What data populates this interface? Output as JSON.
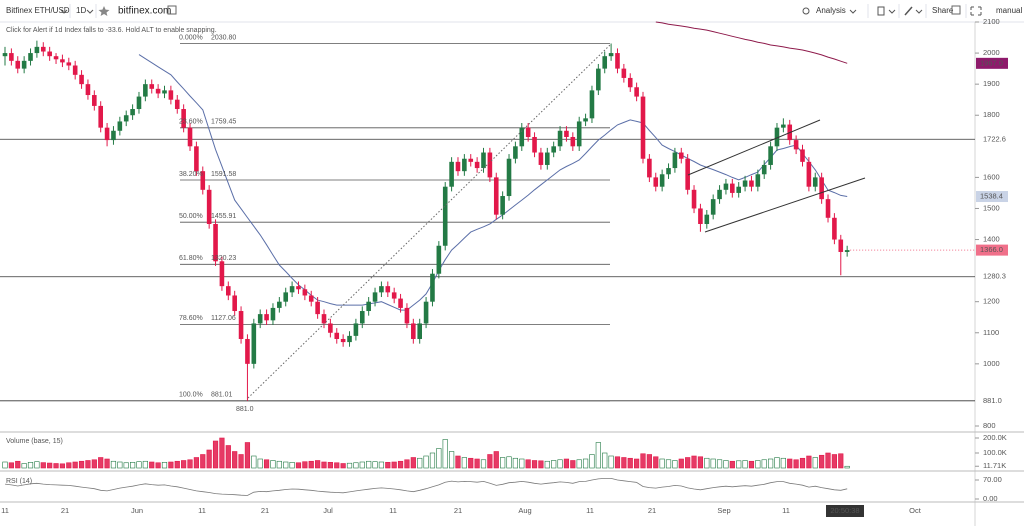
{
  "chart_data": {
    "type": "candlestick",
    "toolbar": {
      "symbol": "Bitfinex ETH/USD",
      "interval": "1D",
      "site": "bitfinex.com",
      "analysis": "Analysis",
      "share": "Share",
      "mode": "manual"
    },
    "hint": "Click for Alert if 1d Index falls to -33.6. Hold ALT to enable snapping.",
    "ylim": [
      800,
      2100
    ],
    "yticks": [
      2100,
      2000,
      1900,
      1800,
      1600,
      1500,
      1400,
      1200,
      1100,
      1000,
      800
    ],
    "hlines": [
      1722.6,
      1280.3,
      {
        "value": 881,
        "label": "881.0"
      }
    ],
    "markers": [
      {
        "value": 1967,
        "label": "1967.0",
        "color": "#8e1a6b"
      },
      {
        "value": 1538.4,
        "label": "1538.4",
        "color": "#c9d3e6"
      },
      {
        "value": 1366,
        "label": "1366.0",
        "color": "#f0708a"
      }
    ],
    "fib": [
      {
        "ratio": "0.000%",
        "value": 2030.8,
        "label": "2030.80"
      },
      {
        "ratio": "23.60%",
        "value": 1759.45,
        "label": "1759.45"
      },
      {
        "ratio": "38.20%",
        "value": 1591.58,
        "label": "1591.58"
      },
      {
        "ratio": "50.00%",
        "value": 1455.91,
        "label": "1455.91"
      },
      {
        "ratio": "61.80%",
        "value": 1320.23,
        "label": "1320.23"
      },
      {
        "ratio": "78.60%",
        "value": 1127.06,
        "label": "1127.06"
      },
      {
        "ratio": "100.0%",
        "value": 881.01,
        "label": "881.01"
      }
    ],
    "low_label": "881.0",
    "up_color": "#237a45",
    "down_color": "#e2184a",
    "candles": [
      [
        1990,
        2020,
        1960,
        2000
      ],
      [
        2000,
        2015,
        1960,
        1975
      ],
      [
        1975,
        1990,
        1935,
        1950
      ],
      [
        1950,
        1990,
        1935,
        1975
      ],
      [
        1975,
        2015,
        1960,
        2000
      ],
      [
        2000,
        2040,
        1985,
        2020
      ],
      [
        2020,
        2035,
        1990,
        2005
      ],
      [
        2005,
        2020,
        1975,
        1990
      ],
      [
        1990,
        2000,
        1965,
        1980
      ],
      [
        1980,
        1995,
        1955,
        1970
      ],
      [
        1970,
        1985,
        1945,
        1960
      ],
      [
        1960,
        1975,
        1915,
        1930
      ],
      [
        1930,
        1945,
        1885,
        1900
      ],
      [
        1900,
        1915,
        1850,
        1865
      ],
      [
        1865,
        1880,
        1815,
        1830
      ],
      [
        1830,
        1845,
        1745,
        1760
      ],
      [
        1760,
        1775,
        1700,
        1720
      ],
      [
        1720,
        1765,
        1705,
        1750
      ],
      [
        1750,
        1795,
        1735,
        1780
      ],
      [
        1780,
        1815,
        1765,
        1800
      ],
      [
        1800,
        1835,
        1785,
        1820
      ],
      [
        1820,
        1875,
        1805,
        1860
      ],
      [
        1860,
        1915,
        1845,
        1900
      ],
      [
        1900,
        1915,
        1870,
        1885
      ],
      [
        1885,
        1900,
        1855,
        1870
      ],
      [
        1870,
        1895,
        1855,
        1880
      ],
      [
        1880,
        1895,
        1835,
        1850
      ],
      [
        1850,
        1865,
        1805,
        1820
      ],
      [
        1820,
        1835,
        1745,
        1760
      ],
      [
        1760,
        1775,
        1685,
        1700
      ],
      [
        1700,
        1715,
        1605,
        1620
      ],
      [
        1620,
        1635,
        1545,
        1560
      ],
      [
        1560,
        1575,
        1435,
        1450
      ],
      [
        1450,
        1465,
        1315,
        1330
      ],
      [
        1330,
        1345,
        1235,
        1250
      ],
      [
        1250,
        1265,
        1205,
        1220
      ],
      [
        1220,
        1235,
        1155,
        1170
      ],
      [
        1170,
        1185,
        1065,
        1080
      ],
      [
        1080,
        1095,
        881.01,
        1000
      ],
      [
        1000,
        1145,
        985,
        1130
      ],
      [
        1130,
        1175,
        1115,
        1160
      ],
      [
        1160,
        1175,
        1125,
        1140
      ],
      [
        1140,
        1195,
        1125,
        1180
      ],
      [
        1180,
        1215,
        1165,
        1200
      ],
      [
        1200,
        1245,
        1185,
        1230
      ],
      [
        1230,
        1265,
        1215,
        1250
      ],
      [
        1250,
        1265,
        1225,
        1240
      ],
      [
        1240,
        1255,
        1205,
        1220
      ],
      [
        1220,
        1235,
        1185,
        1200
      ],
      [
        1200,
        1215,
        1145,
        1160
      ],
      [
        1160,
        1175,
        1115,
        1130
      ],
      [
        1130,
        1145,
        1085,
        1100
      ],
      [
        1100,
        1115,
        1065,
        1080
      ],
      [
        1080,
        1095,
        1055,
        1070
      ],
      [
        1070,
        1105,
        1055,
        1090
      ],
      [
        1090,
        1145,
        1075,
        1130
      ],
      [
        1130,
        1185,
        1115,
        1170
      ],
      [
        1170,
        1215,
        1155,
        1200
      ],
      [
        1200,
        1245,
        1185,
        1230
      ],
      [
        1230,
        1265,
        1215,
        1250
      ],
      [
        1250,
        1265,
        1215,
        1230
      ],
      [
        1230,
        1245,
        1195,
        1210
      ],
      [
        1210,
        1225,
        1165,
        1180
      ],
      [
        1180,
        1195,
        1115,
        1130
      ],
      [
        1130,
        1145,
        1065,
        1080
      ],
      [
        1080,
        1145,
        1065,
        1130
      ],
      [
        1130,
        1215,
        1115,
        1200
      ],
      [
        1200,
        1305,
        1185,
        1290
      ],
      [
        1290,
        1395,
        1275,
        1380
      ],
      [
        1380,
        1585,
        1365,
        1570
      ],
      [
        1570,
        1665,
        1555,
        1650
      ],
      [
        1650,
        1665,
        1605,
        1620
      ],
      [
        1620,
        1675,
        1605,
        1660
      ],
      [
        1660,
        1675,
        1635,
        1650
      ],
      [
        1650,
        1665,
        1615,
        1630
      ],
      [
        1630,
        1695,
        1615,
        1680
      ],
      [
        1680,
        1695,
        1585,
        1600
      ],
      [
        1600,
        1615,
        1465,
        1480
      ],
      [
        1480,
        1555,
        1465,
        1540
      ],
      [
        1540,
        1675,
        1525,
        1660
      ],
      [
        1660,
        1715,
        1645,
        1700
      ],
      [
        1700,
        1775,
        1685,
        1760
      ],
      [
        1760,
        1775,
        1715,
        1730
      ],
      [
        1730,
        1745,
        1665,
        1680
      ],
      [
        1680,
        1695,
        1625,
        1640
      ],
      [
        1640,
        1695,
        1625,
        1680
      ],
      [
        1680,
        1715,
        1665,
        1700
      ],
      [
        1700,
        1765,
        1685,
        1750
      ],
      [
        1750,
        1765,
        1715,
        1730
      ],
      [
        1730,
        1745,
        1685,
        1700
      ],
      [
        1700,
        1795,
        1685,
        1780
      ],
      [
        1780,
        1805,
        1765,
        1790
      ],
      [
        1790,
        1895,
        1775,
        1880
      ],
      [
        1880,
        1965,
        1865,
        1950
      ],
      [
        1950,
        2005,
        1935,
        1990
      ],
      [
        1990,
        2030.8,
        1975,
        2000
      ],
      [
        2000,
        2015,
        1935,
        1950
      ],
      [
        1950,
        1965,
        1905,
        1920
      ],
      [
        1920,
        1935,
        1875,
        1890
      ],
      [
        1890,
        1905,
        1845,
        1860
      ],
      [
        1860,
        1875,
        1645,
        1660
      ],
      [
        1660,
        1675,
        1585,
        1600
      ],
      [
        1600,
        1615,
        1555,
        1570
      ],
      [
        1570,
        1625,
        1555,
        1610
      ],
      [
        1610,
        1645,
        1595,
        1630
      ],
      [
        1630,
        1695,
        1615,
        1680
      ],
      [
        1680,
        1695,
        1645,
        1660
      ],
      [
        1660,
        1675,
        1545,
        1560
      ],
      [
        1560,
        1575,
        1485,
        1500
      ],
      [
        1500,
        1515,
        1425,
        1450
      ],
      [
        1450,
        1495,
        1435,
        1480
      ],
      [
        1480,
        1545,
        1465,
        1530
      ],
      [
        1530,
        1575,
        1515,
        1560
      ],
      [
        1560,
        1595,
        1545,
        1580
      ],
      [
        1580,
        1595,
        1535,
        1550
      ],
      [
        1550,
        1585,
        1535,
        1570
      ],
      [
        1570,
        1605,
        1555,
        1590
      ],
      [
        1590,
        1605,
        1555,
        1570
      ],
      [
        1570,
        1625,
        1555,
        1610
      ],
      [
        1610,
        1655,
        1595,
        1640
      ],
      [
        1640,
        1715,
        1625,
        1700
      ],
      [
        1700,
        1775,
        1685,
        1760
      ],
      [
        1760,
        1790,
        1745,
        1770
      ],
      [
        1770,
        1785,
        1705,
        1720
      ],
      [
        1720,
        1735,
        1675,
        1690
      ],
      [
        1690,
        1705,
        1635,
        1650
      ],
      [
        1650,
        1665,
        1555,
        1570
      ],
      [
        1570,
        1615,
        1555,
        1600
      ],
      [
        1600,
        1615,
        1515,
        1530
      ],
      [
        1530,
        1545,
        1455,
        1470
      ],
      [
        1470,
        1485,
        1385,
        1400
      ],
      [
        1400,
        1415,
        1285,
        1360
      ],
      [
        1360,
        1380,
        1345,
        1366
      ]
    ],
    "ma_fast": {
      "color": "#5b6fa8",
      "values": [
        null,
        null,
        null,
        null,
        null,
        null,
        null,
        null,
        null,
        null,
        null,
        null,
        null,
        null,
        null,
        null,
        null,
        null,
        null,
        null,
        null,
        1995,
        1982,
        1969,
        1956,
        1943,
        1930,
        1907,
        1885,
        1862,
        1840,
        1817,
        1753,
        1690,
        1636,
        1581,
        1527,
        1499,
        1471,
        1443,
        1415,
        1383,
        1350,
        1318,
        1297,
        1275,
        1254,
        1238,
        1221,
        1205,
        1200,
        1194,
        1189,
        1189,
        1189,
        1189,
        1189,
        1193,
        1196,
        1200,
        1191,
        1182,
        1173,
        1173,
        1189,
        1205,
        1225,
        1260,
        1300,
        1335,
        1366,
        1385,
        1405,
        1424,
        1433,
        1441,
        1450,
        1465,
        1479,
        1495,
        1511,
        1527,
        1543,
        1560,
        1576,
        1592,
        1608,
        1624,
        1635,
        1645,
        1656,
        1677,
        1699,
        1720,
        1736,
        1753,
        1769,
        1777,
        1785,
        1780,
        1775,
        1751,
        1728,
        1704,
        1693,
        1683,
        1672,
        1661,
        1651,
        1640,
        1632,
        1625,
        1617,
        1609,
        1600,
        1592,
        1600,
        1609,
        1617,
        1641,
        1664,
        1688,
        1693,
        1699,
        1704,
        1677,
        1651,
        1624,
        1592,
        1559,
        1551,
        1542,
        1538.4
      ]
    },
    "ma_slow": {
      "color": "#8e1a4b",
      "values": [
        null,
        null,
        null,
        null,
        null,
        null,
        null,
        null,
        null,
        null,
        null,
        null,
        null,
        null,
        null,
        null,
        null,
        null,
        null,
        null,
        null,
        null,
        null,
        null,
        null,
        null,
        null,
        null,
        null,
        null,
        null,
        null,
        null,
        null,
        null,
        null,
        null,
        null,
        null,
        null,
        null,
        null,
        null,
        null,
        null,
        null,
        null,
        null,
        null,
        null,
        null,
        null,
        null,
        null,
        null,
        null,
        null,
        null,
        null,
        null,
        null,
        null,
        null,
        null,
        null,
        null,
        null,
        null,
        null,
        null,
        null,
        null,
        null,
        null,
        null,
        null,
        null,
        null,
        null,
        null,
        null,
        null,
        null,
        null,
        null,
        null,
        null,
        null,
        null,
        null,
        null,
        null,
        null,
        null,
        null,
        null,
        null,
        null,
        null,
        null,
        null,
        null,
        2100,
        2097,
        2093,
        2090,
        2087,
        2084,
        2080,
        2077,
        2074,
        2069,
        2064,
        2059,
        2054,
        2049,
        2044,
        2040,
        2035,
        2031,
        2026,
        2023,
        2020,
        2016,
        2013,
        2010,
        2005,
        2000,
        1994,
        1987,
        1981,
        1974,
        1967
      ]
    },
    "volume_label": "Volume (base, 15)",
    "vlim": [
      0,
      200000
    ],
    "vticks": [
      {
        "value": 200000,
        "label": "200.0K"
      },
      {
        "value": 100000,
        "label": "100.0K"
      },
      {
        "value": 11710,
        "label": "11.71K"
      }
    ],
    "volume": [
      40000,
      35000,
      45000,
      30000,
      38000,
      42000,
      36000,
      33000,
      30000,
      28000,
      35000,
      40000,
      45000,
      50000,
      55000,
      70000,
      60000,
      45000,
      40000,
      35000,
      38000,
      42000,
      45000,
      40000,
      35000,
      38000,
      40000,
      45000,
      50000,
      55000,
      70000,
      90000,
      120000,
      180000,
      200000,
      150000,
      110000,
      90000,
      170000,
      80000,
      60000,
      55000,
      50000,
      45000,
      40000,
      38000,
      35000,
      42000,
      45000,
      50000,
      40000,
      38000,
      35000,
      30000,
      32000,
      35000,
      40000,
      45000,
      42000,
      40000,
      38000,
      40000,
      45000,
      55000,
      70000,
      65000,
      80000,
      100000,
      130000,
      190000,
      110000,
      80000,
      70000,
      65000,
      60000,
      55000,
      90000,
      110000,
      70000,
      75000,
      65000,
      60000,
      55000,
      50000,
      48000,
      45000,
      50000,
      55000,
      60000,
      50000,
      55000,
      60000,
      90000,
      170000,
      100000,
      80000,
      75000,
      70000,
      65000,
      60000,
      95000,
      90000,
      75000,
      60000,
      55000,
      50000,
      60000,
      70000,
      80000,
      75000,
      65000,
      60000,
      55000,
      50000,
      45000,
      48000,
      50000,
      45000,
      50000,
      55000,
      60000,
      70000,
      65000,
      60000,
      55000,
      65000,
      80000,
      70000,
      85000,
      100000,
      90000,
      95000,
      11710
    ],
    "rsi_label": "RSI (14)",
    "rlim": [
      0,
      100
    ],
    "rticks": [
      {
        "value": 70,
        "label": "70.00"
      },
      {
        "value": 0,
        "label": "0.00"
      }
    ],
    "rsi_color": "#7a7a7a",
    "rsi": [
      55,
      52,
      48,
      52,
      56,
      58,
      55,
      53,
      52,
      51,
      50,
      47,
      44,
      41,
      38,
      32,
      30,
      35,
      40,
      44,
      47,
      52,
      56,
      53,
      51,
      52,
      48,
      45,
      40,
      35,
      30,
      27,
      24,
      20,
      18,
      17,
      16,
      14,
      13,
      25,
      28,
      27,
      30,
      32,
      35,
      37,
      36,
      34,
      32,
      29,
      27,
      25,
      24,
      23,
      26,
      30,
      33,
      36,
      39,
      41,
      39,
      37,
      34,
      30,
      27,
      32,
      38,
      45,
      52,
      62,
      66,
      63,
      65,
      64,
      62,
      65,
      58,
      50,
      54,
      60,
      62,
      65,
      62,
      58,
      55,
      58,
      60,
      63,
      61,
      58,
      64,
      65,
      70,
      74,
      76,
      76,
      70,
      67,
      64,
      61,
      46,
      42,
      40,
      44,
      46,
      50,
      48,
      41,
      37,
      34,
      38,
      42,
      45,
      47,
      45,
      47,
      49,
      47,
      51,
      54,
      60,
      64,
      64,
      58,
      55,
      51,
      44,
      47,
      42,
      38,
      34,
      32,
      37.58
    ],
    "xlabels": [
      "11",
      "21",
      "Jun",
      "11",
      "21",
      "Jul",
      "11",
      "21",
      "Aug",
      "11",
      "21",
      "Sep",
      "11",
      "Oct"
    ],
    "countdown": "20:50:38"
  }
}
